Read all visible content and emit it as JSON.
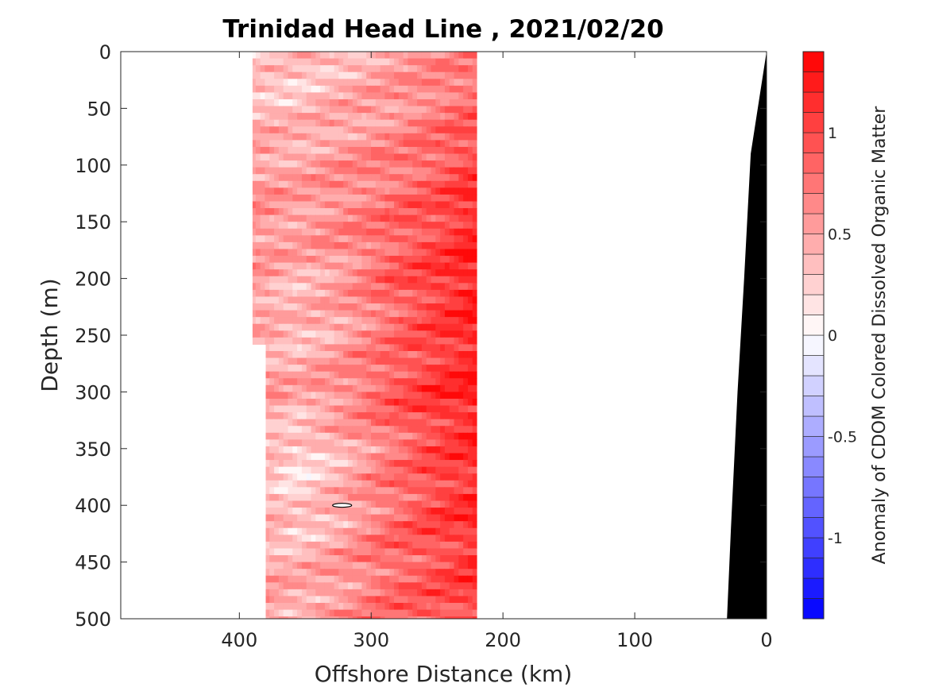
{
  "chart_data": {
    "type": "heatmap",
    "title": "Trinidad Head Line , 2021/02/20",
    "xlabel": "Offshore Distance (km)",
    "ylabel": "Depth (m)",
    "x_reversed": true,
    "xlim": [
      490,
      0
    ],
    "ylim": [
      0,
      500
    ],
    "y_reversed": true,
    "x_ticks": [
      "400",
      "300",
      "200",
      "100",
      "0"
    ],
    "x_tick_values": [
      400,
      300,
      200,
      100,
      0
    ],
    "y_ticks": [
      "0",
      "50",
      "100",
      "150",
      "200",
      "250",
      "300",
      "350",
      "400",
      "450",
      "500"
    ],
    "y_tick_values": [
      0,
      50,
      100,
      150,
      200,
      250,
      300,
      350,
      400,
      450,
      500
    ],
    "data_extent_km": [
      220,
      390
    ],
    "colorbar": {
      "label": "Anomaly of CDOM Colored Dissolved Organic Matter",
      "range": [
        -1.4,
        1.4
      ],
      "levels": 28,
      "ticks": [
        "1",
        "0.5",
        "0",
        "-0.5",
        "-1"
      ],
      "tick_values": [
        1,
        0.5,
        0,
        -0.5,
        -1
      ],
      "colormap": "blue-white-red",
      "low_color": "#0000ff",
      "mid_color": "#ffffff",
      "high_color": "#ff0000"
    },
    "field_rows": [
      {
        "depth": 0,
        "values": [
          0.25,
          0.3,
          0.4,
          0.5,
          0.6,
          0.7
        ]
      },
      {
        "depth": 50,
        "values": [
          0.4,
          0.35,
          0.45,
          0.55,
          0.7,
          0.85
        ]
      },
      {
        "depth": 100,
        "values": [
          0.55,
          0.5,
          0.6,
          0.7,
          0.85,
          1.05
        ]
      },
      {
        "depth": 150,
        "values": [
          0.6,
          0.55,
          0.65,
          0.8,
          0.95,
          1.2
        ]
      },
      {
        "depth": 200,
        "values": [
          0.55,
          0.4,
          0.55,
          0.85,
          1.05,
          1.25
        ]
      },
      {
        "depth": 250,
        "values": [
          0.45,
          0.35,
          0.5,
          0.75,
          1.0,
          1.2
        ]
      },
      {
        "depth": 300,
        "values": [
          0.6,
          0.5,
          0.65,
          0.9,
          1.1,
          1.25
        ]
      },
      {
        "depth": 350,
        "values": [
          0.4,
          0.2,
          0.4,
          0.7,
          0.95,
          1.15
        ]
      },
      {
        "depth": 400,
        "values": [
          0.45,
          0.25,
          0.45,
          0.75,
          1.0,
          1.15
        ]
      },
      {
        "depth": 450,
        "values": [
          0.5,
          0.4,
          0.55,
          0.8,
          0.95,
          1.1
        ]
      },
      {
        "depth": 500,
        "values": [
          0.55,
          0.5,
          0.6,
          0.8,
          0.9,
          1.05
        ]
      }
    ],
    "field_columns_km": [
      390,
      356,
      322,
      288,
      254,
      220
    ],
    "bathymetry": [
      [
        0,
        0
      ],
      [
        12,
        90
      ],
      [
        17,
        200
      ],
      [
        22,
        300
      ],
      [
        27,
        420
      ],
      [
        30,
        500
      ]
    ],
    "zero_contour": {
      "x_km": 322,
      "depth": 400
    }
  }
}
